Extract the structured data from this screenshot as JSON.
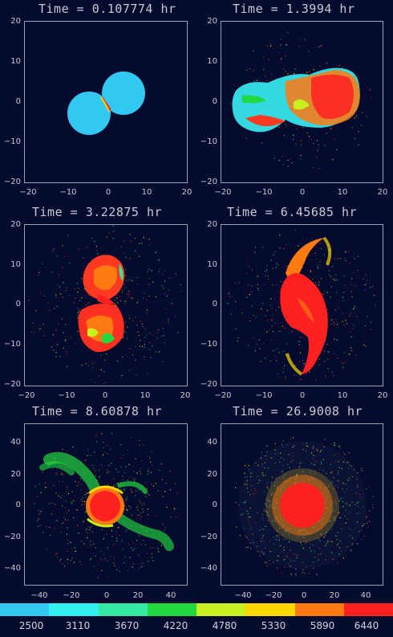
{
  "panels": [
    {
      "title": "Time = 0.107774 hr",
      "yticks": [
        "20",
        "10",
        "0",
        "−10",
        "−20"
      ],
      "xticks": [
        "−20",
        "−10",
        "0",
        "10",
        "20"
      ]
    },
    {
      "title": "Time = 1.3994 hr",
      "yticks": [
        "20",
        "10",
        "0",
        "−10",
        "−20"
      ],
      "xticks": [
        "−20",
        "−10",
        "0",
        "10",
        "20"
      ]
    },
    {
      "title": "Time = 3.22875 hr",
      "yticks": [
        "20",
        "10",
        "0",
        "−10",
        "−20"
      ],
      "xticks": [
        "−20",
        "−10",
        "0",
        "10",
        "20"
      ]
    },
    {
      "title": "Time = 6.45685 hr",
      "yticks": [
        "20",
        "10",
        "0",
        "−10",
        "−20"
      ],
      "xticks": [
        "−20",
        "−10",
        "0",
        "10",
        "20"
      ]
    },
    {
      "title": "Time = 8.60878 hr",
      "yticks": [
        "40",
        "20",
        "0",
        "−20",
        "−40"
      ],
      "xticks": [
        "−40",
        "−20",
        "0",
        "20",
        "40"
      ]
    },
    {
      "title": "Time = 26.9008 hr",
      "yticks": [
        "40",
        "20",
        "0",
        "−20",
        "−40"
      ],
      "xticks": [
        "−40",
        "−20",
        "0",
        "20",
        "40"
      ]
    }
  ],
  "colorbar": {
    "labels": [
      "2500",
      "3110",
      "3670",
      "4220",
      "4780",
      "5330",
      "5890",
      "6440"
    ],
    "colors": [
      "#33c8f2",
      "#33f0f0",
      "#33e8a0",
      "#22d840",
      "#c8f020",
      "#ffd800",
      "#ff7a10",
      "#ff2020"
    ]
  }
}
